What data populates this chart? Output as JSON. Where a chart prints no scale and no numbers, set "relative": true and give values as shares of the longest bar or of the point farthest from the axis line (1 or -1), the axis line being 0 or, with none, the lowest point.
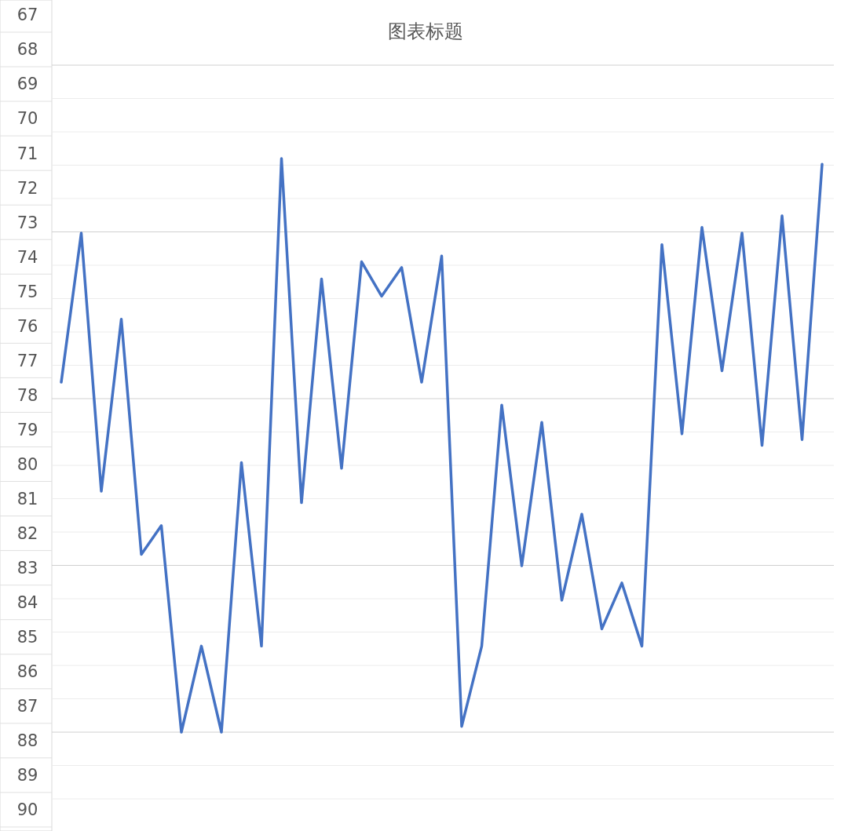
{
  "chart_data": {
    "type": "line",
    "title": "图表标题",
    "relative": true,
    "grid": true,
    "categories": [
      null,
      null,
      null,
      null,
      null,
      null,
      null,
      null,
      null,
      null,
      null,
      null,
      null,
      null,
      null,
      null,
      null,
      null,
      null,
      null,
      null,
      null,
      null,
      null,
      null,
      null,
      null,
      null,
      null,
      null,
      null,
      null,
      null,
      null,
      null,
      null,
      null,
      null,
      null
    ],
    "series": [
      {
        "color": "#4472c4",
        "values": [
          0.61,
          0.87,
          0.42,
          0.72,
          0.31,
          0.36,
          0.0,
          0.15,
          0,
          0.47,
          0.15,
          1,
          0.4,
          0.79,
          0.46,
          0.82,
          0.76,
          0.81,
          0.61,
          0.83,
          0.01,
          0.15,
          0.57,
          0.29,
          0.54,
          0.23,
          0.38,
          0.18,
          0.26,
          0.15,
          0.85,
          0.52,
          0.88,
          0.63,
          0.87,
          0.5,
          0.9,
          0.51,
          0.99
        ]
      }
    ],
    "annotations": [
      "67",
      "68",
      "69",
      "70",
      "71",
      "72",
      "73",
      "74",
      "75",
      "76",
      "77",
      "78",
      "79",
      "80",
      "81",
      "82",
      "83",
      "84",
      "85",
      "86",
      "87",
      "88",
      "89",
      "90"
    ]
  }
}
